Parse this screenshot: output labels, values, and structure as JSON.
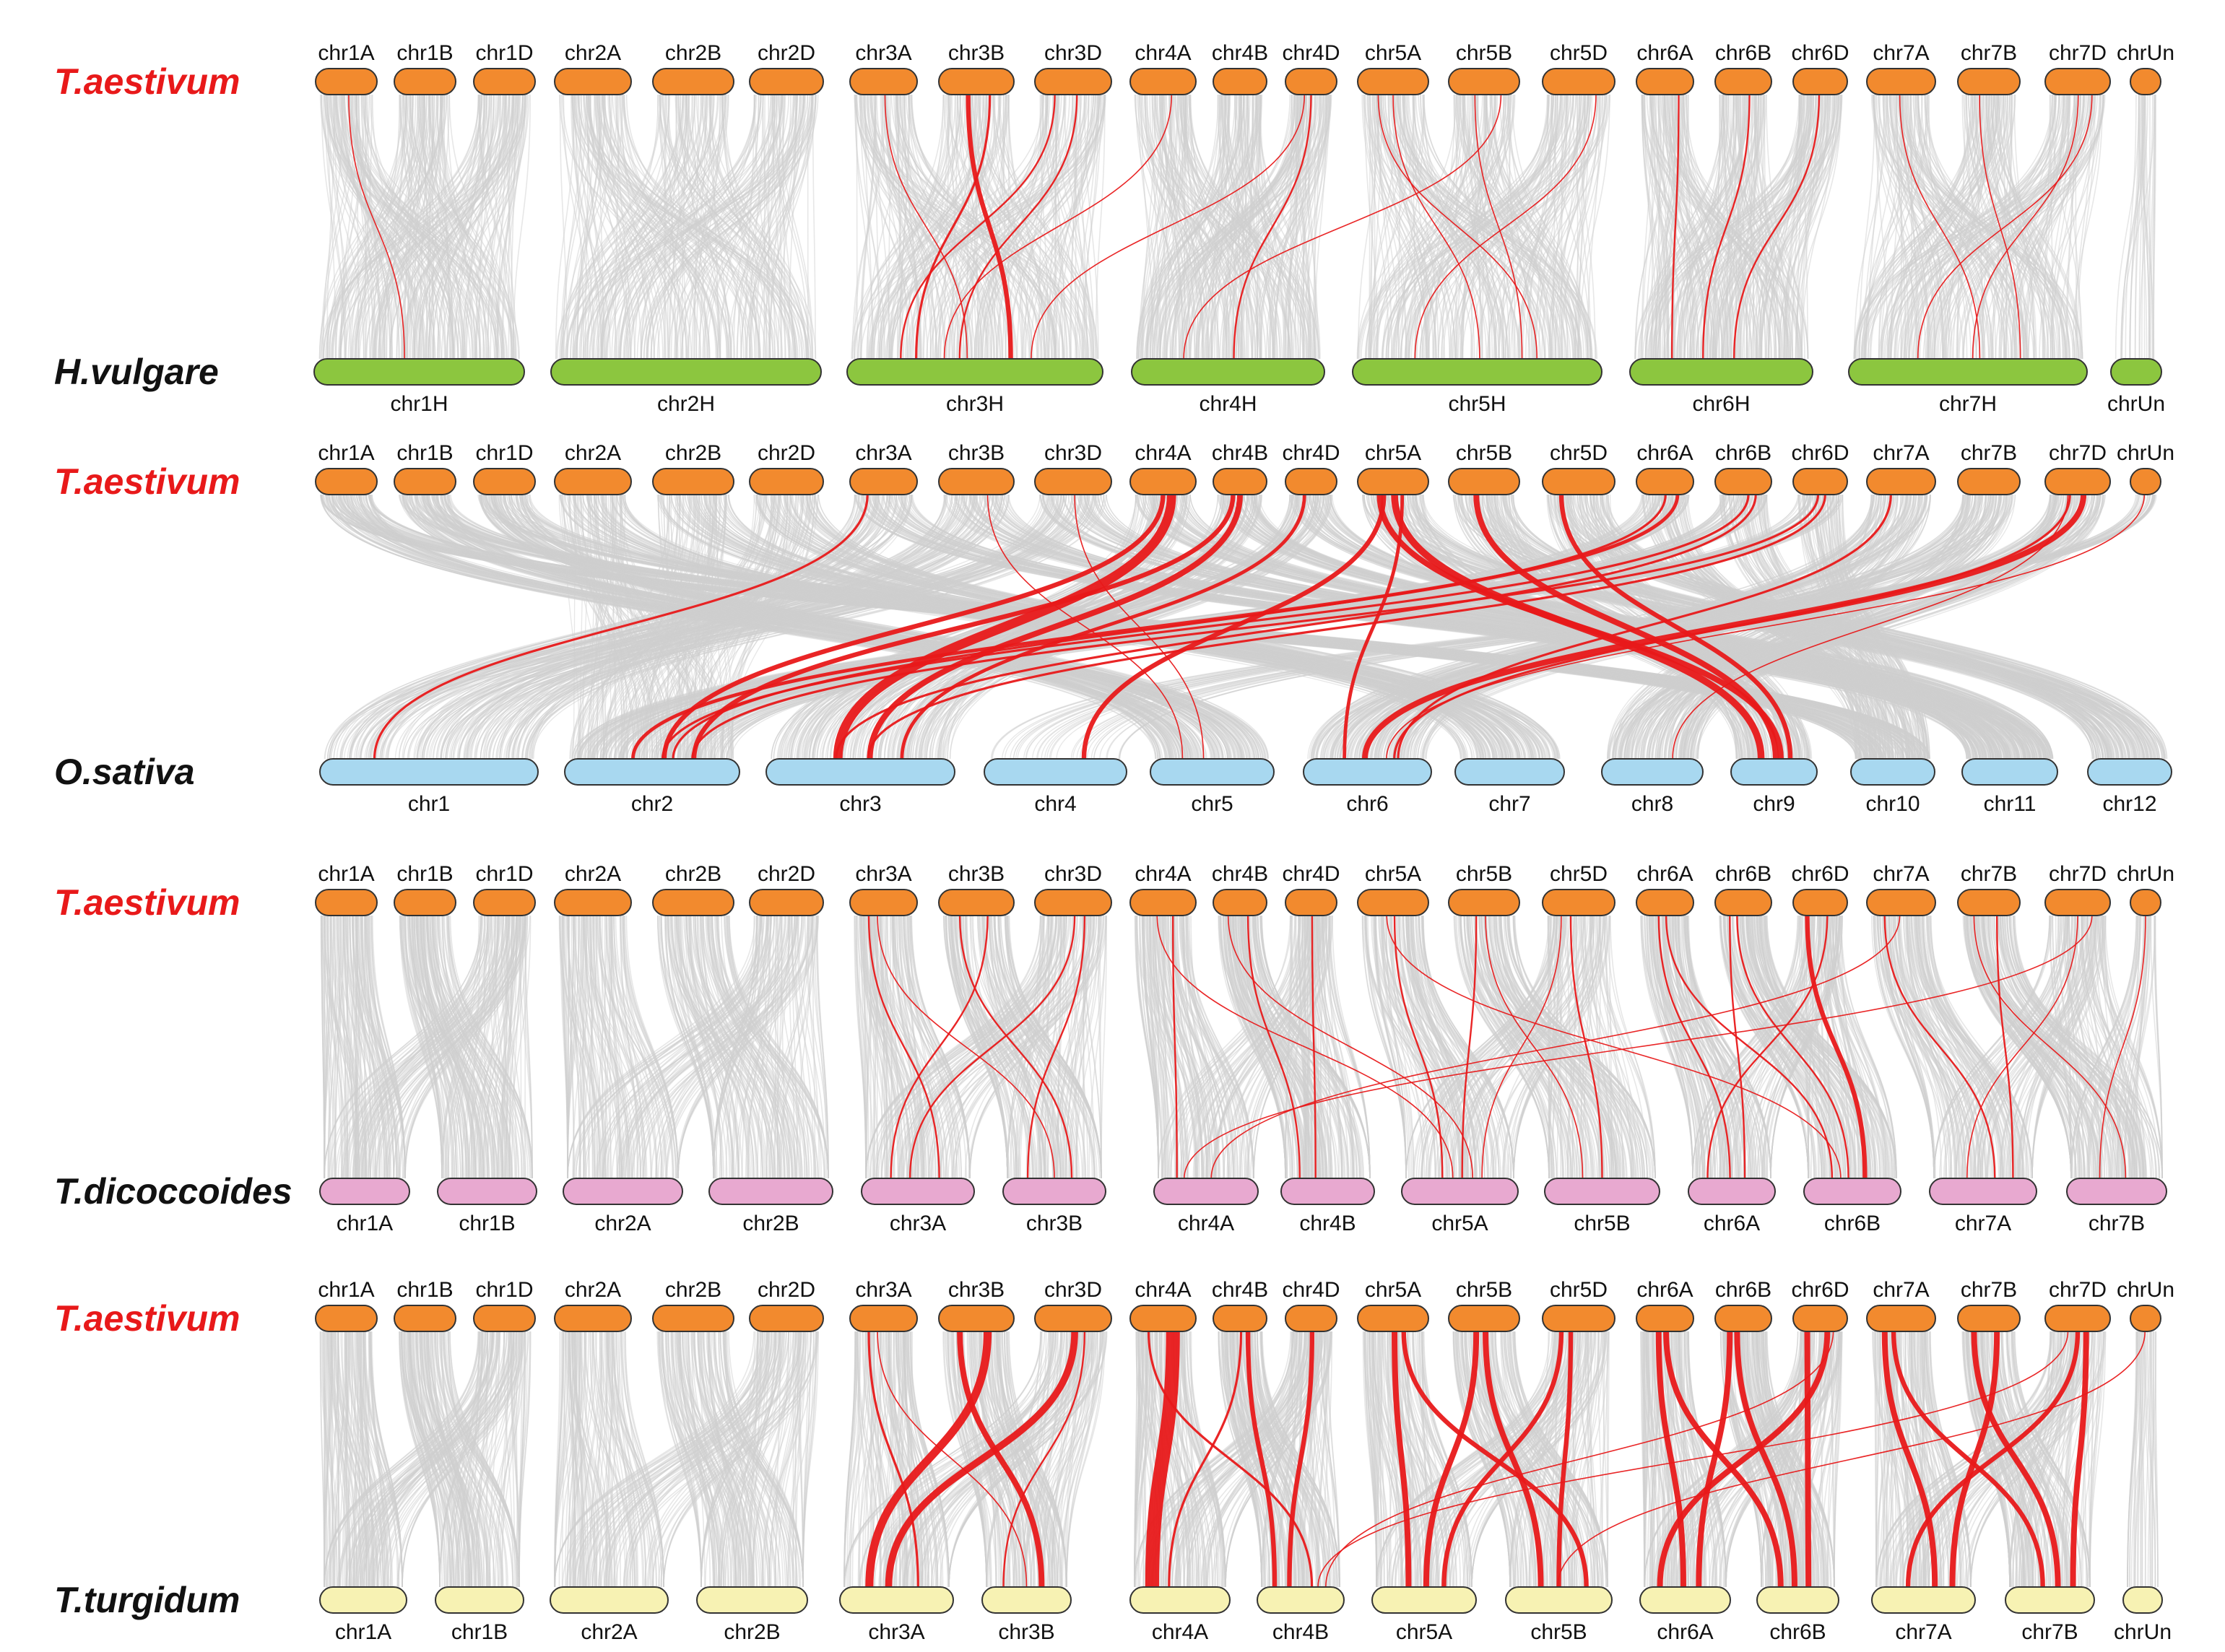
{
  "colors": {
    "reference_species": "#e8191a",
    "target_species": "#111111",
    "T.aestivum_chrom": "#f28a2e",
    "H.vulgare_chrom": "#8cc63f",
    "O.sativa_chrom": "#a8d8f0",
    "T.dicoccoides_chrom": "#e8a9d0",
    "T.turgidum_chrom": "#f7f2b3",
    "background_link": "#cfcfcf",
    "highlight_link": "#e8191a"
  },
  "reference_chromosomes": [
    "chr1A",
    "chr1B",
    "chr1D",
    "chr2A",
    "chr2B",
    "chr2D",
    "chr3A",
    "chr3B",
    "chr3D",
    "chr4A",
    "chr4B",
    "chr4D",
    "chr5A",
    "chr5B",
    "chr5D",
    "chr6A",
    "chr6B",
    "chr6D",
    "chr7A",
    "chr7B",
    "chr7D",
    "chrUn"
  ],
  "panels": [
    {
      "reference": "T.aestivum",
      "target": "H.vulgare",
      "target_color": "#8cc63f",
      "target_chromosomes": [
        "chr1H",
        "chr2H",
        "chr3H",
        "chr4H",
        "chr5H",
        "chr6H",
        "chr7H",
        "chrUn"
      ],
      "gray_density": 90,
      "red_links": [
        {
          "from": "chr1A",
          "to": "chr1H",
          "w": 1
        },
        {
          "from": "chr3A",
          "to": "chr3H",
          "w": 1
        },
        {
          "from": "chr3B",
          "to": "chr3H",
          "w": 4
        },
        {
          "from": "chr3B",
          "to": "chr3H",
          "w": 2
        },
        {
          "from": "chr3D",
          "to": "chr3H",
          "w": 1.5
        },
        {
          "from": "chr3D",
          "to": "chr3H",
          "w": 1.5
        },
        {
          "from": "chr4A",
          "to": "chr3H",
          "w": 1
        },
        {
          "from": "chr4D",
          "to": "chr4H",
          "w": 1.5
        },
        {
          "from": "chr4D",
          "to": "chr3H",
          "w": 1
        },
        {
          "from": "chr5A",
          "to": "chr5H",
          "w": 1
        },
        {
          "from": "chr5A",
          "to": "chr5H",
          "w": 1
        },
        {
          "from": "chr5B",
          "to": "chr5H",
          "w": 1
        },
        {
          "from": "chr5B",
          "to": "chr4H",
          "w": 1
        },
        {
          "from": "chr5D",
          "to": "chr5H",
          "w": 1
        },
        {
          "from": "chr6A",
          "to": "chr6H",
          "w": 1.5
        },
        {
          "from": "chr6B",
          "to": "chr6H",
          "w": 1.5
        },
        {
          "from": "chr6D",
          "to": "chr6H",
          "w": 1.5
        },
        {
          "from": "chr7A",
          "to": "chr7H",
          "w": 1
        },
        {
          "from": "chr7B",
          "to": "chr7H",
          "w": 1
        },
        {
          "from": "chr7D",
          "to": "chr7H",
          "w": 1
        },
        {
          "from": "chr7D",
          "to": "chr7H",
          "w": 1
        }
      ]
    },
    {
      "reference": "T.aestivum",
      "target": "O.sativa",
      "target_color": "#a8d8f0",
      "target_chromosomes": [
        "chr1",
        "chr2",
        "chr3",
        "chr4",
        "chr5",
        "chr6",
        "chr7",
        "chr8",
        "chr9",
        "chr10",
        "chr11",
        "chr12"
      ],
      "gray_density": 130,
      "red_links": [
        {
          "from": "chr3A",
          "to": "chr1",
          "w": 2
        },
        {
          "from": "chr3B",
          "to": "chr5",
          "w": 1
        },
        {
          "from": "chr3D",
          "to": "chr5",
          "w": 1
        },
        {
          "from": "chr4A",
          "to": "chr3",
          "w": 8
        },
        {
          "from": "chr4A",
          "to": "chr2",
          "w": 4
        },
        {
          "from": "chr4B",
          "to": "chr3",
          "w": 5
        },
        {
          "from": "chr4B",
          "to": "chr2",
          "w": 4
        },
        {
          "from": "chr4D",
          "to": "chr3",
          "w": 3
        },
        {
          "from": "chr5A",
          "to": "chr9",
          "w": 6
        },
        {
          "from": "chr5A",
          "to": "chr9",
          "w": 5
        },
        {
          "from": "chr5A",
          "to": "chr6",
          "w": 3
        },
        {
          "from": "chr5A",
          "to": "chr4",
          "w": 4
        },
        {
          "from": "chr5B",
          "to": "chr9",
          "w": 5
        },
        {
          "from": "chr5D",
          "to": "chr9",
          "w": 4
        },
        {
          "from": "chr6A",
          "to": "chr2",
          "w": 3
        },
        {
          "from": "chr6A",
          "to": "chr2",
          "w": 2
        },
        {
          "from": "chr6B",
          "to": "chr2",
          "w": 2
        },
        {
          "from": "chr6B",
          "to": "chr3",
          "w": 2
        },
        {
          "from": "chr6D",
          "to": "chr2",
          "w": 2
        },
        {
          "from": "chr6D",
          "to": "chr3",
          "w": 2
        },
        {
          "from": "chr7A",
          "to": "chr6",
          "w": 2
        },
        {
          "from": "chr7D",
          "to": "chr6",
          "w": 5
        },
        {
          "from": "chr7D",
          "to": "chr6",
          "w": 2
        },
        {
          "from": "chr7D",
          "to": "chr8",
          "w": 1
        },
        {
          "from": "chrUn",
          "to": "chr6",
          "w": 1
        }
      ]
    },
    {
      "reference": "T.aestivum",
      "target": "T.dicoccoides",
      "target_color": "#e8a9d0",
      "target_chromosomes": [
        "chr1A",
        "chr1B",
        "chr2A",
        "chr2B",
        "chr3A",
        "chr3B",
        "chr4A",
        "chr4B",
        "chr5A",
        "chr5B",
        "chr6A",
        "chr6B",
        "chr7A",
        "chr7B"
      ],
      "gray_density": 110,
      "red_links": [
        {
          "from": "chr3A",
          "to": "chr3A",
          "w": 1.5
        },
        {
          "from": "chr3A",
          "to": "chr3B",
          "w": 1
        },
        {
          "from": "chr3B",
          "to": "chr3A",
          "w": 1.5
        },
        {
          "from": "chr3B",
          "to": "chr3B",
          "w": 1.5
        },
        {
          "from": "chr3D",
          "to": "chr3A",
          "w": 1.5
        },
        {
          "from": "chr3D",
          "to": "chr3B",
          "w": 1.5
        },
        {
          "from": "chr4A",
          "to": "chr4A",
          "w": 1.5
        },
        {
          "from": "chr4A",
          "to": "chr5A",
          "w": 1
        },
        {
          "from": "chr4B",
          "to": "chr4B",
          "w": 1.5
        },
        {
          "from": "chr4B",
          "to": "chr5A",
          "w": 1
        },
        {
          "from": "chr4D",
          "to": "chr4B",
          "w": 1.5
        },
        {
          "from": "chr5A",
          "to": "chr5A",
          "w": 1.5
        },
        {
          "from": "chr5A",
          "to": "chr6B",
          "w": 1
        },
        {
          "from": "chr5B",
          "to": "chr5A",
          "w": 1.5
        },
        {
          "from": "chr5B",
          "to": "chr5B",
          "w": 1
        },
        {
          "from": "chr5D",
          "to": "chr5A",
          "w": 1
        },
        {
          "from": "chr5D",
          "to": "chr5B",
          "w": 1.5
        },
        {
          "from": "chr6A",
          "to": "chr6A",
          "w": 1.5
        },
        {
          "from": "chr6A",
          "to": "chr6B",
          "w": 1.5
        },
        {
          "from": "chr6B",
          "to": "chr6A",
          "w": 1.5
        },
        {
          "from": "chr6B",
          "to": "chr6B",
          "w": 1.5
        },
        {
          "from": "chr6D",
          "to": "chr6B",
          "w": 4
        },
        {
          "from": "chr6D",
          "to": "chr6A",
          "w": 1.5
        },
        {
          "from": "chr7A",
          "to": "chr7A",
          "w": 1.5
        },
        {
          "from": "chr7A",
          "to": "chr4A",
          "w": 1
        },
        {
          "from": "chr7B",
          "to": "chr7A",
          "w": 1.5
        },
        {
          "from": "chr7B",
          "to": "chr7B",
          "w": 1
        },
        {
          "from": "chr7D",
          "to": "chr7A",
          "w": 1
        },
        {
          "from": "chr7D",
          "to": "chr4A",
          "w": 1
        },
        {
          "from": "chrUn",
          "to": "chr7B",
          "w": 1
        }
      ]
    },
    {
      "reference": "T.aestivum",
      "target": "T.turgidum",
      "target_color": "#f7f2b3",
      "target_chromosomes": [
        "chr1A",
        "chr1B",
        "chr2A",
        "chr2B",
        "chr3A",
        "chr3B",
        "chr4A",
        "chr4B",
        "chr5A",
        "chr5B",
        "chr6A",
        "chr6B",
        "chr7A",
        "chr7B",
        "chrUn"
      ],
      "gray_density": 110,
      "red_links": [
        {
          "from": "chr3A",
          "to": "chr3A",
          "w": 2
        },
        {
          "from": "chr3A",
          "to": "chr3B",
          "w": 1
        },
        {
          "from": "chr3B",
          "to": "chr3A",
          "w": 7
        },
        {
          "from": "chr3B",
          "to": "chr3B",
          "w": 5
        },
        {
          "from": "chr3D",
          "to": "chr3A",
          "w": 6
        },
        {
          "from": "chr3D",
          "to": "chr3B",
          "w": 1.5
        },
        {
          "from": "chr4A",
          "to": "chr4A",
          "w": 12
        },
        {
          "from": "chr4A",
          "to": "chr4B",
          "w": 2
        },
        {
          "from": "chr4B",
          "to": "chr4B",
          "w": 4
        },
        {
          "from": "chr4B",
          "to": "chr4A",
          "w": 2
        },
        {
          "from": "chr4D",
          "to": "chr4B",
          "w": 4
        },
        {
          "from": "chr5A",
          "to": "chr5A",
          "w": 5
        },
        {
          "from": "chr5A",
          "to": "chr5B",
          "w": 4
        },
        {
          "from": "chr5B",
          "to": "chr5A",
          "w": 5
        },
        {
          "from": "chr5B",
          "to": "chr5B",
          "w": 5
        },
        {
          "from": "chr5D",
          "to": "chr5A",
          "w": 4
        },
        {
          "from": "chr5D",
          "to": "chr5B",
          "w": 4
        },
        {
          "from": "chr6A",
          "to": "chr6A",
          "w": 5
        },
        {
          "from": "chr6A",
          "to": "chr6B",
          "w": 5
        },
        {
          "from": "chr6B",
          "to": "chr6A",
          "w": 5
        },
        {
          "from": "chr6B",
          "to": "chr6B",
          "w": 5
        },
        {
          "from": "chr6D",
          "to": "chr6A",
          "w": 5
        },
        {
          "from": "chr6D",
          "to": "chr6B",
          "w": 5
        },
        {
          "from": "chr7A",
          "to": "chr7A",
          "w": 5
        },
        {
          "from": "chr7A",
          "to": "chr7B",
          "w": 4
        },
        {
          "from": "chr7B",
          "to": "chr7A",
          "w": 5
        },
        {
          "from": "chr7B",
          "to": "chr7B",
          "w": 5
        },
        {
          "from": "chr7D",
          "to": "chr7B",
          "w": 5
        },
        {
          "from": "chr7D",
          "to": "chr7A",
          "w": 4
        },
        {
          "from": "chrUn",
          "to": "chr5B",
          "w": 1
        },
        {
          "from": "chr7D",
          "to": "chr4B",
          "w": 1
        },
        {
          "from": "chr6D",
          "to": "chr4B",
          "w": 1
        }
      ]
    }
  ]
}
